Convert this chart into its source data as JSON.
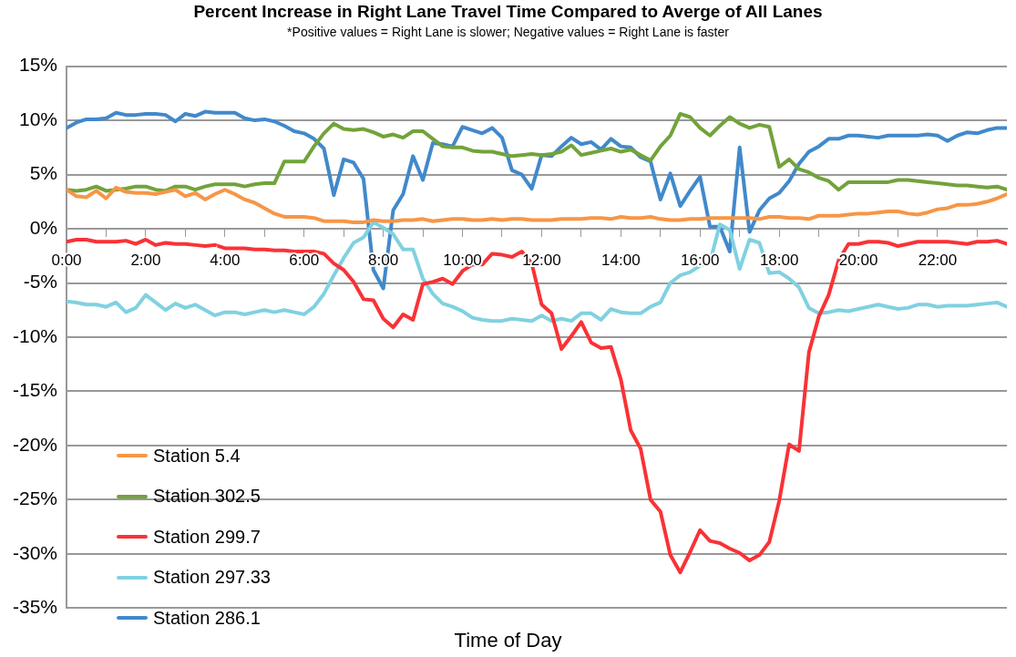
{
  "chart_data": {
    "type": "line",
    "title": "Percent Increase in Right Lane Travel Time Compared to Averge of All Lanes",
    "subtitle": "*Positive values = Right Lane is slower; Negative values = Right Lane is faster",
    "xlabel": "Time of Day",
    "x": [
      0,
      0.25,
      0.5,
      0.75,
      1,
      1.25,
      1.5,
      1.75,
      2,
      2.25,
      2.5,
      2.75,
      3,
      3.25,
      3.5,
      3.75,
      4,
      4.25,
      4.5,
      4.75,
      5,
      5.25,
      5.5,
      5.75,
      6,
      6.25,
      6.5,
      6.75,
      7,
      7.25,
      7.5,
      7.75,
      8,
      8.25,
      8.5,
      8.75,
      9,
      9.25,
      9.5,
      9.75,
      10,
      10.25,
      10.5,
      10.75,
      11,
      11.25,
      11.5,
      11.75,
      12,
      12.25,
      12.5,
      12.75,
      13,
      13.25,
      13.5,
      13.75,
      14,
      14.25,
      14.5,
      14.75,
      15,
      15.25,
      15.5,
      15.75,
      16,
      16.25,
      16.5,
      16.75,
      17,
      17.25,
      17.5,
      17.75,
      18,
      18.25,
      18.5,
      18.75,
      19,
      19.25,
      19.5,
      19.75,
      20,
      20.25,
      20.5,
      20.75,
      21,
      21.25,
      21.5,
      21.75,
      22,
      22.25,
      22.5,
      22.75,
      23,
      23.25,
      23.5,
      23.75
    ],
    "series": [
      {
        "name": "Station 5.4",
        "color": "#f79646",
        "values": [
          3.6,
          3.0,
          2.9,
          3.5,
          2.8,
          3.8,
          3.4,
          3.3,
          3.3,
          3.2,
          3.4,
          3.6,
          3.0,
          3.3,
          2.7,
          3.2,
          3.6,
          3.2,
          2.7,
          2.4,
          1.9,
          1.4,
          1.1,
          1.1,
          1.1,
          1.0,
          0.7,
          0.7,
          0.7,
          0.6,
          0.6,
          0.8,
          0.7,
          0.7,
          0.8,
          0.8,
          0.9,
          0.7,
          0.8,
          0.9,
          0.9,
          0.8,
          0.8,
          0.9,
          0.8,
          0.9,
          0.9,
          0.8,
          0.8,
          0.8,
          0.9,
          0.9,
          0.9,
          1.0,
          1.0,
          0.9,
          1.1,
          1.0,
          1.0,
          1.1,
          0.9,
          0.8,
          0.8,
          0.9,
          0.9,
          1.0,
          1.0,
          1.0,
          1.0,
          1.0,
          0.9,
          1.1,
          1.1,
          1.0,
          1.0,
          0.9,
          1.2,
          1.2,
          1.2,
          1.3,
          1.4,
          1.4,
          1.5,
          1.6,
          1.6,
          1.4,
          1.3,
          1.5,
          1.8,
          1.9,
          2.2,
          2.2,
          2.3,
          2.5,
          2.8,
          3.2
        ]
      },
      {
        "name": "Station 302.5",
        "color": "#72a33a",
        "values": [
          3.6,
          3.5,
          3.6,
          3.9,
          3.5,
          3.6,
          3.7,
          3.9,
          3.9,
          3.6,
          3.5,
          3.9,
          3.9,
          3.6,
          3.9,
          4.1,
          4.1,
          4.1,
          3.9,
          4.1,
          4.2,
          4.2,
          6.2,
          6.2,
          6.2,
          7.6,
          8.8,
          9.7,
          9.2,
          9.1,
          9.2,
          8.9,
          8.5,
          8.7,
          8.4,
          9.0,
          9.0,
          8.3,
          7.6,
          7.5,
          7.5,
          7.2,
          7.1,
          7.1,
          6.9,
          6.7,
          6.8,
          6.9,
          6.8,
          6.9,
          7.1,
          7.7,
          6.8,
          7.0,
          7.2,
          7.4,
          7.1,
          7.3,
          6.8,
          6.3,
          7.6,
          8.6,
          10.6,
          10.3,
          9.3,
          8.6,
          9.5,
          10.3,
          9.7,
          9.3,
          9.6,
          9.4,
          5.7,
          6.4,
          5.5,
          5.2,
          4.7,
          4.4,
          3.6,
          4.3,
          4.3,
          4.3,
          4.3,
          4.3,
          4.5,
          4.5,
          4.4,
          4.3,
          4.2,
          4.1,
          4.0,
          4.0,
          3.9,
          3.8,
          3.9,
          3.6
        ]
      },
      {
        "name": "Station 299.7",
        "color": "#f93236",
        "values": [
          -1.2,
          -1.0,
          -1.0,
          -1.2,
          -1.2,
          -1.2,
          -1.1,
          -1.4,
          -1.0,
          -1.5,
          -1.3,
          -1.4,
          -1.4,
          -1.5,
          -1.6,
          -1.5,
          -1.8,
          -1.8,
          -1.8,
          -1.9,
          -1.9,
          -2.0,
          -2.0,
          -2.1,
          -2.1,
          -2.1,
          -2.3,
          -3.2,
          -3.8,
          -4.9,
          -6.5,
          -6.6,
          -8.3,
          -9.1,
          -7.9,
          -8.4,
          -5.1,
          -4.9,
          -4.6,
          -5.1,
          -3.9,
          -3.3,
          -3.3,
          -2.3,
          -2.4,
          -2.6,
          -2.1,
          -3.2,
          -7.0,
          -7.8,
          -11.1,
          -9.9,
          -8.6,
          -10.5,
          -11.0,
          -10.9,
          -13.9,
          -18.6,
          -20.3,
          -25.0,
          -26.1,
          -30.1,
          -31.7,
          -29.8,
          -27.8,
          -28.8,
          -29.0,
          -29.5,
          -29.9,
          -30.6,
          -30.1,
          -28.9,
          -25.1,
          -19.9,
          -20.5,
          -11.4,
          -8.1,
          -6.1,
          -2.9,
          -1.4,
          -1.4,
          -1.2,
          -1.2,
          -1.3,
          -1.6,
          -1.4,
          -1.2,
          -1.2,
          -1.2,
          -1.2,
          -1.3,
          -1.4,
          -1.2,
          -1.2,
          -1.1,
          -1.4
        ]
      },
      {
        "name": "Station 297.33",
        "color": "#80d1e1",
        "values": [
          -6.7,
          -6.8,
          -7.0,
          -7.0,
          -7.2,
          -6.8,
          -7.7,
          -7.3,
          -6.1,
          -6.8,
          -7.5,
          -6.9,
          -7.3,
          -7.0,
          -7.5,
          -8.0,
          -7.7,
          -7.7,
          -7.9,
          -7.7,
          -7.5,
          -7.7,
          -7.5,
          -7.7,
          -7.9,
          -7.2,
          -6.0,
          -4.3,
          -2.7,
          -1.3,
          -0.8,
          0.6,
          0.1,
          -0.5,
          -1.9,
          -1.9,
          -4.6,
          -6.0,
          -6.9,
          -7.2,
          -7.6,
          -8.2,
          -8.4,
          -8.5,
          -8.5,
          -8.3,
          -8.4,
          -8.5,
          -8.0,
          -8.5,
          -8.3,
          -8.5,
          -7.8,
          -7.8,
          -8.4,
          -7.4,
          -7.7,
          -7.8,
          -7.8,
          -7.2,
          -6.8,
          -5.0,
          -4.3,
          -4.0,
          -3.4,
          -3.1,
          0.4,
          -0.1,
          -3.7,
          -1.0,
          -1.3,
          -4.1,
          -4.0,
          -4.6,
          -5.4,
          -7.3,
          -7.8,
          -7.7,
          -7.5,
          -7.6,
          -7.4,
          -7.2,
          -7.0,
          -7.2,
          -7.4,
          -7.3,
          -7.0,
          -7.0,
          -7.2,
          -7.1,
          -7.1,
          -7.1,
          -7.0,
          -6.9,
          -6.8,
          -7.2
        ]
      },
      {
        "name": "Station 286.1",
        "color": "#4189cb",
        "values": [
          9.3,
          9.8,
          10.1,
          10.1,
          10.2,
          10.7,
          10.5,
          10.5,
          10.6,
          10.6,
          10.5,
          9.9,
          10.6,
          10.4,
          10.8,
          10.7,
          10.7,
          10.7,
          10.2,
          10.0,
          10.1,
          9.9,
          9.5,
          9.0,
          8.8,
          8.3,
          7.4,
          3.1,
          6.4,
          6.1,
          4.6,
          -3.8,
          -5.5,
          1.7,
          3.2,
          6.7,
          4.5,
          7.9,
          7.8,
          7.6,
          9.4,
          9.1,
          8.8,
          9.3,
          8.4,
          5.4,
          5.0,
          3.7,
          6.8,
          6.7,
          7.6,
          8.4,
          7.8,
          8.0,
          7.3,
          8.3,
          7.6,
          7.5,
          6.6,
          6.2,
          2.7,
          5.1,
          2.1,
          3.5,
          4.8,
          0.2,
          0.2,
          -2.1,
          7.5,
          -0.3,
          1.7,
          2.8,
          3.3,
          4.4,
          6.0,
          7.1,
          7.6,
          8.3,
          8.3,
          8.6,
          8.6,
          8.5,
          8.4,
          8.6,
          8.6,
          8.6,
          8.6,
          8.7,
          8.6,
          8.1,
          8.6,
          8.9,
          8.8,
          9.1,
          9.3,
          9.3
        ]
      }
    ],
    "xlim": [
      0,
      23.75
    ],
    "xticks": [
      {
        "value": 0,
        "label": "0:00"
      },
      {
        "value": 1,
        "label": null
      },
      {
        "value": 2,
        "label": "2:00"
      },
      {
        "value": 3,
        "label": null
      },
      {
        "value": 4,
        "label": "4:00"
      },
      {
        "value": 5,
        "label": null
      },
      {
        "value": 6,
        "label": "6:00"
      },
      {
        "value": 7,
        "label": null
      },
      {
        "value": 8,
        "label": "8:00"
      },
      {
        "value": 9,
        "label": null
      },
      {
        "value": 10,
        "label": "10:00"
      },
      {
        "value": 11,
        "label": null
      },
      {
        "value": 12,
        "label": "12:00"
      },
      {
        "value": 13,
        "label": null
      },
      {
        "value": 14,
        "label": "14:00"
      },
      {
        "value": 15,
        "label": null
      },
      {
        "value": 16,
        "label": "16:00"
      },
      {
        "value": 17,
        "label": null
      },
      {
        "value": 18,
        "label": "18:00"
      },
      {
        "value": 19,
        "label": null
      },
      {
        "value": 20,
        "label": "20:00"
      },
      {
        "value": 21,
        "label": null
      },
      {
        "value": 22,
        "label": "22:00"
      },
      {
        "value": 23,
        "label": null
      }
    ],
    "ylim": [
      -35,
      15
    ],
    "yticks": [
      {
        "value": 15,
        "label": "15%"
      },
      {
        "value": 10,
        "label": "10%"
      },
      {
        "value": 5,
        "label": "5%"
      },
      {
        "value": 0,
        "label": "0%"
      },
      {
        "value": -5,
        "label": "-5%"
      },
      {
        "value": -10,
        "label": "-10%"
      },
      {
        "value": -15,
        "label": "-15%"
      },
      {
        "value": -20,
        "label": "-20%"
      },
      {
        "value": -25,
        "label": "-25%"
      },
      {
        "value": -30,
        "label": "-30%"
      },
      {
        "value": -35,
        "label": "-35%"
      }
    ],
    "grid": "y",
    "legend": "bottom left",
    "marker": "none",
    "line_style": "solid"
  }
}
